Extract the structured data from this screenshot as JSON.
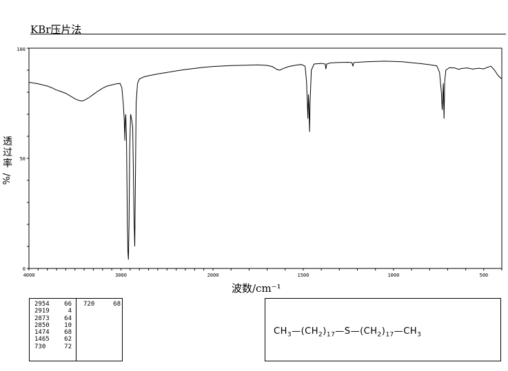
{
  "header": {
    "method": "KBr压片法"
  },
  "chart_data": {
    "type": "line",
    "title": "KBr压片法",
    "xlabel": "波数/cm⁻¹",
    "ylabel": [
      "透",
      "过",
      "率",
      "%/"
    ],
    "xlim": [
      4000,
      400
    ],
    "ylim": [
      0,
      100
    ],
    "x_ticks": [
      4000,
      3000,
      2000,
      1500,
      1000,
      500
    ],
    "y_ticks": [
      0,
      50,
      100
    ],
    "series": [
      {
        "points": [
          [
            4000,
            84.5
          ],
          [
            3950,
            84.2
          ],
          [
            3900,
            83.8
          ],
          [
            3850,
            83.3
          ],
          [
            3800,
            82.8
          ],
          [
            3750,
            82.0
          ],
          [
            3700,
            81.0
          ],
          [
            3650,
            80.3
          ],
          [
            3600,
            79.5
          ],
          [
            3550,
            78.3
          ],
          [
            3500,
            77.0
          ],
          [
            3460,
            76.3
          ],
          [
            3430,
            76.0
          ],
          [
            3400,
            76.3
          ],
          [
            3350,
            77.5
          ],
          [
            3300,
            79.0
          ],
          [
            3250,
            80.5
          ],
          [
            3200,
            81.8
          ],
          [
            3150,
            82.8
          ],
          [
            3100,
            83.3
          ],
          [
            3050,
            83.8
          ],
          [
            3010,
            84.0
          ],
          [
            2990,
            82.0
          ],
          [
            2975,
            75.0
          ],
          [
            2965,
            68.0
          ],
          [
            2960,
            62.0
          ],
          [
            2957,
            58.0
          ],
          [
            2954,
            66.0
          ],
          [
            2948,
            70.0
          ],
          [
            2940,
            60.0
          ],
          [
            2930,
            20.0
          ],
          [
            2925,
            8.0
          ],
          [
            2919,
            4.0
          ],
          [
            2912,
            20.0
          ],
          [
            2905,
            55.0
          ],
          [
            2895,
            70.0
          ],
          [
            2885,
            68.0
          ],
          [
            2873,
            64.0
          ],
          [
            2865,
            45.0
          ],
          [
            2858,
            22.0
          ],
          [
            2850,
            10.0
          ],
          [
            2843,
            40.0
          ],
          [
            2835,
            75.0
          ],
          [
            2820,
            84.0
          ],
          [
            2800,
            86.0
          ],
          [
            2750,
            87.0
          ],
          [
            2700,
            87.5
          ],
          [
            2600,
            88.3
          ],
          [
            2500,
            89.0
          ],
          [
            2400,
            89.7
          ],
          [
            2300,
            90.3
          ],
          [
            2200,
            90.8
          ],
          [
            2100,
            91.3
          ],
          [
            2000,
            91.7
          ],
          [
            1900,
            92.1
          ],
          [
            1800,
            92.3
          ],
          [
            1750,
            92.4
          ],
          [
            1700,
            92.2
          ],
          [
            1670,
            91.6
          ],
          [
            1645,
            90.3
          ],
          [
            1630,
            90.0
          ],
          [
            1610,
            90.8
          ],
          [
            1580,
            91.7
          ],
          [
            1540,
            92.3
          ],
          [
            1510,
            92.6
          ],
          [
            1490,
            91.8
          ],
          [
            1482,
            85.0
          ],
          [
            1477,
            74.0
          ],
          [
            1474,
            68.0
          ],
          [
            1471,
            79.0
          ],
          [
            1468,
            73.0
          ],
          [
            1465,
            62.0
          ],
          [
            1462,
            76.0
          ],
          [
            1455,
            90.0
          ],
          [
            1440,
            92.8
          ],
          [
            1400,
            93.1
          ],
          [
            1378,
            92.8
          ],
          [
            1375,
            90.5
          ],
          [
            1370,
            92.8
          ],
          [
            1350,
            93.3
          ],
          [
            1300,
            93.5
          ],
          [
            1250,
            93.6
          ],
          [
            1230,
            93.4
          ],
          [
            1225,
            91.8
          ],
          [
            1220,
            93.5
          ],
          [
            1150,
            93.8
          ],
          [
            1100,
            94.0
          ],
          [
            1050,
            94.1
          ],
          [
            1000,
            94.0
          ],
          [
            950,
            93.8
          ],
          [
            900,
            93.4
          ],
          [
            850,
            93.0
          ],
          [
            800,
            92.5
          ],
          [
            760,
            92.0
          ],
          [
            745,
            89.0
          ],
          [
            735,
            80.0
          ],
          [
            730,
            72.0
          ],
          [
            727,
            78.0
          ],
          [
            724,
            84.0
          ],
          [
            720,
            68.0
          ],
          [
            716,
            85.0
          ],
          [
            710,
            90.0
          ],
          [
            690,
            91.2
          ],
          [
            660,
            91.0
          ],
          [
            640,
            90.4
          ],
          [
            620,
            90.8
          ],
          [
            590,
            91.0
          ],
          [
            560,
            90.5
          ],
          [
            530,
            90.9
          ],
          [
            500,
            90.6
          ],
          [
            480,
            91.3
          ],
          [
            460,
            91.8
          ],
          [
            440,
            90.0
          ],
          [
            420,
            87.5
          ],
          [
            400,
            86.0
          ]
        ]
      }
    ]
  },
  "peak_table": {
    "col1": [
      [
        "2954",
        "66"
      ],
      [
        "2919",
        "4"
      ],
      [
        "2873",
        "64"
      ],
      [
        "2850",
        "10"
      ],
      [
        "1474",
        "68"
      ],
      [
        "1465",
        "62"
      ],
      [
        "730",
        "72"
      ]
    ],
    "col2": [
      [
        "720",
        "68"
      ]
    ]
  },
  "formula": {
    "ch3_left": "CH",
    "sub3_left": "3",
    "dash1": "—",
    "open1": "(CH",
    "sub2_a": "2",
    "close1": ")",
    "n1": "17",
    "dash2": "—",
    "s": "S",
    "dash3": "—",
    "open2": "(CH",
    "sub2_b": "2",
    "close2": ")",
    "n2": "17",
    "dash4": "—",
    "ch3_right": "CH",
    "sub3_right": "3"
  }
}
